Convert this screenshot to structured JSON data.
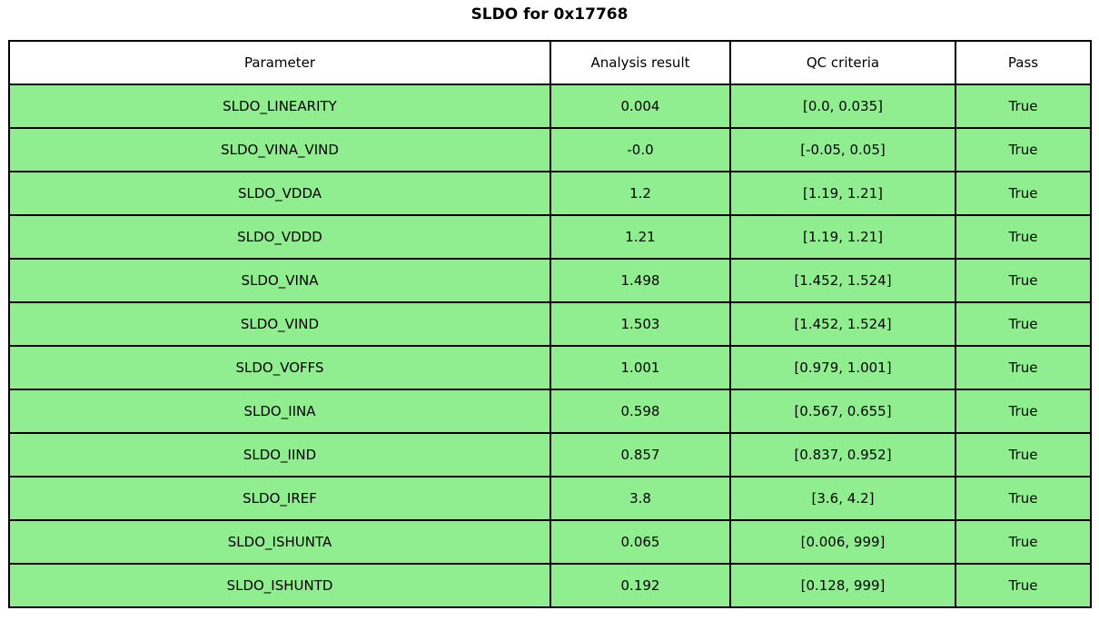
{
  "page_title": "SLDO for 0x17768",
  "colors": {
    "row_green": "#90ee90",
    "header_bg": "#ffffff",
    "border": "#000000",
    "background": "#ffffff"
  },
  "chart_data": {
    "type": "table",
    "title": "SLDO for 0x17768",
    "columns": [
      "Parameter",
      "Analysis result",
      "QC criteria",
      "Pass"
    ],
    "rows": [
      {
        "parameter": "SLDO_LINEARITY",
        "analysis_result": "0.004",
        "qc_criteria": "[0.0, 0.035]",
        "pass": "True"
      },
      {
        "parameter": "SLDO_VINA_VIND",
        "analysis_result": "-0.0",
        "qc_criteria": "[-0.05, 0.05]",
        "pass": "True"
      },
      {
        "parameter": "SLDO_VDDA",
        "analysis_result": "1.2",
        "qc_criteria": "[1.19, 1.21]",
        "pass": "True"
      },
      {
        "parameter": "SLDO_VDDD",
        "analysis_result": "1.21",
        "qc_criteria": "[1.19, 1.21]",
        "pass": "True"
      },
      {
        "parameter": "SLDO_VINA",
        "analysis_result": "1.498",
        "qc_criteria": "[1.452, 1.524]",
        "pass": "True"
      },
      {
        "parameter": "SLDO_VIND",
        "analysis_result": "1.503",
        "qc_criteria": "[1.452, 1.524]",
        "pass": "True"
      },
      {
        "parameter": "SLDO_VOFFS",
        "analysis_result": "1.001",
        "qc_criteria": "[0.979, 1.001]",
        "pass": "True"
      },
      {
        "parameter": "SLDO_IINA",
        "analysis_result": "0.598",
        "qc_criteria": "[0.567, 0.655]",
        "pass": "True"
      },
      {
        "parameter": "SLDO_IIND",
        "analysis_result": "0.857",
        "qc_criteria": "[0.837, 0.952]",
        "pass": "True"
      },
      {
        "parameter": "SLDO_IREF",
        "analysis_result": "3.8",
        "qc_criteria": "[3.6, 4.2]",
        "pass": "True"
      },
      {
        "parameter": "SLDO_ISHUNTA",
        "analysis_result": "0.065",
        "qc_criteria": "[0.006, 999]",
        "pass": "True"
      },
      {
        "parameter": "SLDO_ISHUNTD",
        "analysis_result": "0.192",
        "qc_criteria": "[0.128, 999]",
        "pass": "True"
      }
    ],
    "layout": {
      "legend": "none",
      "grid": "table-borders",
      "row_fill": "#90ee90",
      "header_fill": "#ffffff"
    }
  }
}
